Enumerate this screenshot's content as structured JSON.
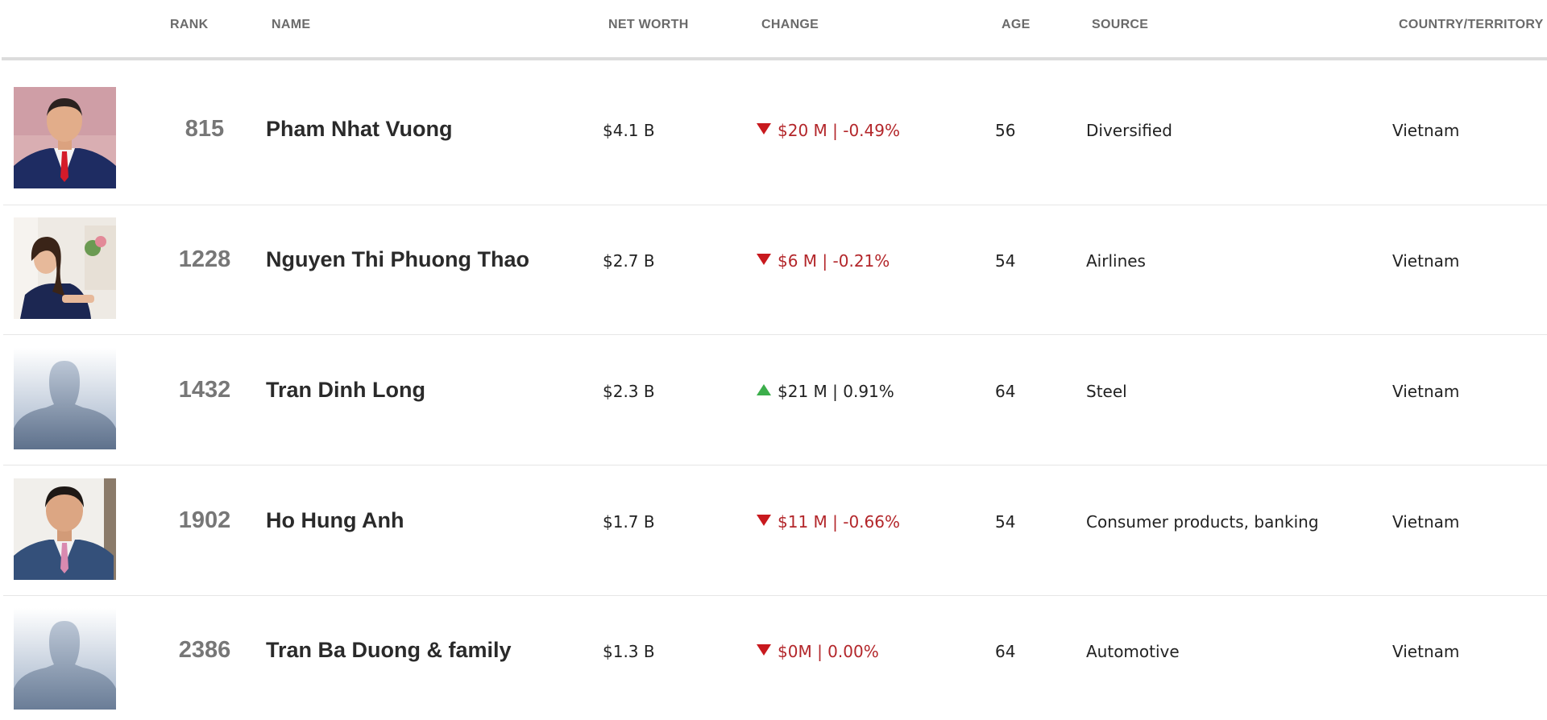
{
  "table": {
    "columns": {
      "rank": "RANK",
      "name": "NAME",
      "net_worth": "NET WORTH",
      "change": "CHANGE",
      "age": "AGE",
      "source": "SOURCE",
      "country": "COUNTRY/TERRITORY"
    },
    "rows": [
      {
        "rank": "815",
        "name": "Pham Nhat Vuong",
        "net_worth": "$4.1 B",
        "change": "$20 M | -0.49%",
        "direction": "down",
        "age": "56",
        "source": "Diversified",
        "country": "Vietnam",
        "avatar": "photo-man-red-tie"
      },
      {
        "rank": "1228",
        "name": "Nguyen Thi Phuong Thao",
        "net_worth": "$2.7 B",
        "change": "$6 M | -0.21%",
        "direction": "down",
        "age": "54",
        "source": "Airlines",
        "country": "Vietnam",
        "avatar": "photo-woman-navy-dress"
      },
      {
        "rank": "1432",
        "name": "Tran Dinh Long",
        "net_worth": "$2.3 B",
        "change": "$21 M | 0.91%",
        "direction": "up",
        "age": "64",
        "source": "Steel",
        "country": "Vietnam",
        "avatar": "silhouette-placeholder"
      },
      {
        "rank": "1902",
        "name": "Ho Hung Anh",
        "net_worth": "$1.7 B",
        "change": "$11 M | -0.66%",
        "direction": "down",
        "age": "54",
        "source": "Consumer products, banking",
        "country": "Vietnam",
        "avatar": "photo-man-pink-tie"
      },
      {
        "rank": "2386",
        "name": "Tran Ba Duong & family",
        "net_worth": "$1.3 B",
        "change": "$0M | 0.00%",
        "direction": "down",
        "age": "64",
        "source": "Automotive",
        "country": "Vietnam",
        "avatar": "silhouette-placeholder"
      }
    ]
  },
  "colors": {
    "negative_change": "#b3262a",
    "down_arrow": "#c8191e",
    "up_arrow": "#3cae4b",
    "header_text": "#6a6a6a",
    "rank_text": "#777777"
  }
}
